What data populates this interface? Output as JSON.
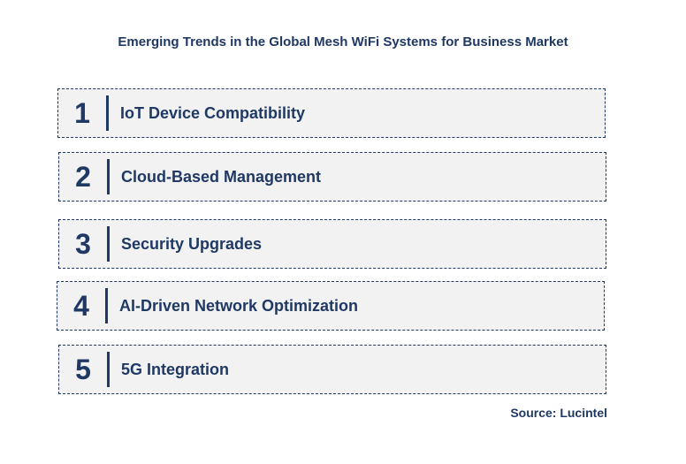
{
  "title": "Emerging Trends in the Global Mesh WiFi Systems for Business Market",
  "trends": [
    {
      "number": "1",
      "label": "IoT Device Compatibility"
    },
    {
      "number": "2",
      "label": "Cloud-Based Management"
    },
    {
      "number": "3",
      "label": "Security Upgrades"
    },
    {
      "number": "4",
      "label": "AI-Driven Network Optimization"
    },
    {
      "number": "5",
      "label": "5G Integration"
    }
  ],
  "source": "Source: Lucintel",
  "colors": {
    "accent": "#1f3864",
    "box_fill": "#f2f2f2",
    "background": "#ffffff"
  }
}
